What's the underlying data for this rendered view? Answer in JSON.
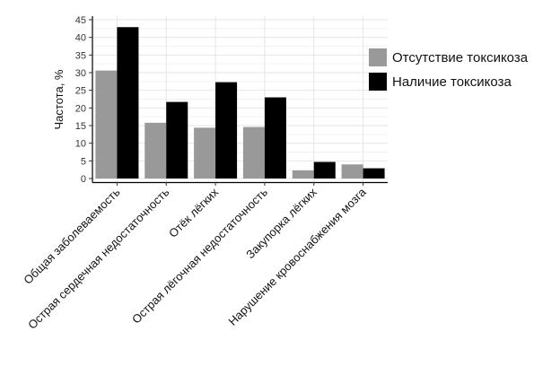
{
  "chart_data": {
    "type": "bar",
    "title": "",
    "xlabel": "",
    "ylabel": "Частота, %",
    "ylim": [
      0,
      45
    ],
    "yticks": [
      0,
      5,
      10,
      15,
      20,
      25,
      30,
      35,
      40,
      45
    ],
    "grid": true,
    "legend_position": "right",
    "categories": [
      "Общая заболеваемость",
      "Острая сердечная недостаточность",
      "Отёк лёгких",
      "Острая лёгочная недостаточность",
      "Закупорка лёгких",
      "Нарушение кровоснабжения мозга"
    ],
    "series": [
      {
        "name": "Отсутствие токсикоза",
        "color": "#999999",
        "values": [
          30.6,
          15.8,
          14.4,
          14.6,
          2.3,
          4.0
        ]
      },
      {
        "name": "Наличие токсикоза",
        "color": "#000000",
        "values": [
          42.9,
          21.7,
          27.3,
          23.0,
          4.7,
          2.9
        ]
      }
    ]
  }
}
